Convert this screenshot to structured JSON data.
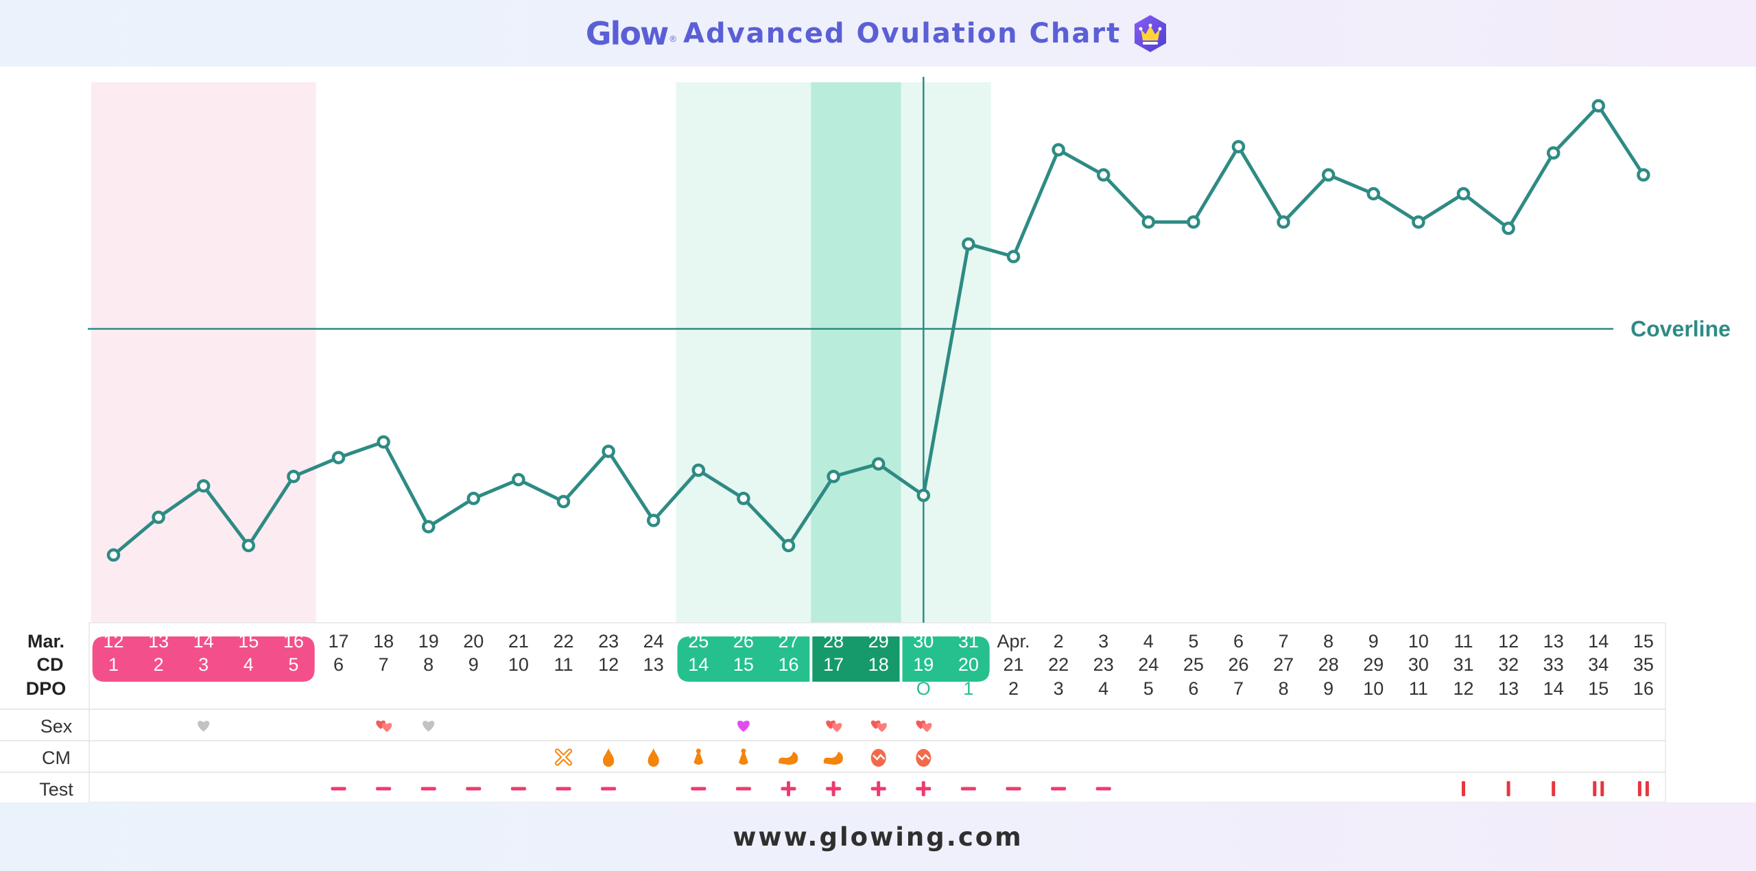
{
  "header": {
    "logo": "Glow",
    "logo_mark": "®",
    "title": "Advanced Ovulation Chart",
    "icon": "crown-icon"
  },
  "footer": {
    "url": "www.glowing.com"
  },
  "colors": {
    "line": "#2e8b84",
    "period_band": "#fdebf2",
    "fertile_band": "#e6f8f1",
    "peak_band": "#b9ecda",
    "period_chip": "#f3508b",
    "fertile_chip": "#26c08f",
    "peak_chip": "#169a6c",
    "test_mark": "#ee3a6e",
    "cm_mark": "#f5840b",
    "sex_gray": "#c2c2c2",
    "sex_purple": "#e34df0",
    "sex_red": "#f25b5b"
  },
  "chart_data": {
    "type": "line",
    "series_name": "",
    "ylim": [
      0,
      100
    ],
    "coverline": {
      "value": 47,
      "label": "Coverline"
    },
    "ovulation_day_index": 18,
    "x_labels": {
      "month_label": "Mar.",
      "cd_label": "CD",
      "dpo_label": "DPO",
      "dates": [
        "12",
        "13",
        "14",
        "15",
        "16",
        "17",
        "18",
        "19",
        "20",
        "21",
        "22",
        "23",
        "24",
        "25",
        "26",
        "27",
        "28",
        "29",
        "30",
        "31",
        "Apr.",
        "2",
        "3",
        "4",
        "5",
        "6",
        "7",
        "8",
        "9",
        "10",
        "11",
        "12",
        "13",
        "14",
        "15"
      ],
      "cd": [
        "1",
        "2",
        "3",
        "4",
        "5",
        "6",
        "7",
        "8",
        "9",
        "10",
        "11",
        "12",
        "13",
        "14",
        "15",
        "16",
        "17",
        "18",
        "19",
        "20",
        "21",
        "22",
        "23",
        "24",
        "25",
        "26",
        "27",
        "28",
        "29",
        "30",
        "31",
        "32",
        "33",
        "34",
        "35"
      ],
      "dpo": [
        "",
        "",
        "",
        "",
        "",
        "",
        "",
        "",
        "",
        "",
        "",
        "",
        "",
        "",
        "",
        "",
        "",
        "",
        "O",
        "1",
        "2",
        "3",
        "4",
        "5",
        "6",
        "7",
        "8",
        "9",
        "10",
        "11",
        "12",
        "13",
        "14",
        "15",
        "16"
      ]
    },
    "values": [
      11,
      17,
      22,
      12.5,
      23.5,
      26.5,
      29,
      15.5,
      20,
      23,
      19.5,
      27.5,
      16.5,
      24.5,
      20,
      12.5,
      23.5,
      25.5,
      20.5,
      60.5,
      58.5,
      75.5,
      71.5,
      64,
      64,
      76,
      64,
      71.5,
      68.5,
      64,
      68.5,
      63,
      75,
      82.5,
      71.5
    ],
    "bands": [
      {
        "kind": "period",
        "start": 0,
        "end": 4
      },
      {
        "kind": "fertile",
        "start": 13,
        "end": 19
      },
      {
        "kind": "peak",
        "start": 16,
        "end": 17
      }
    ],
    "rows": [
      {
        "label": "Sex",
        "marks": [
          {
            "i": 2,
            "type": "heart-gray"
          },
          {
            "i": 6,
            "type": "hearts-red"
          },
          {
            "i": 7,
            "type": "heart-gray"
          },
          {
            "i": 14,
            "type": "heart-purple"
          },
          {
            "i": 16,
            "type": "hearts-red"
          },
          {
            "i": 17,
            "type": "hearts-red"
          },
          {
            "i": 18,
            "type": "hearts-red"
          }
        ]
      },
      {
        "label": "CM",
        "marks": [
          {
            "i": 10,
            "type": "dry"
          },
          {
            "i": 11,
            "type": "drop"
          },
          {
            "i": 12,
            "type": "drop"
          },
          {
            "i": 13,
            "type": "sticky"
          },
          {
            "i": 14,
            "type": "sticky"
          },
          {
            "i": 15,
            "type": "creamy"
          },
          {
            "i": 16,
            "type": "creamy"
          },
          {
            "i": 17,
            "type": "eggwhite"
          },
          {
            "i": 18,
            "type": "eggwhite"
          }
        ]
      },
      {
        "label": "Test",
        "marks": [
          {
            "i": 5,
            "type": "minus"
          },
          {
            "i": 6,
            "type": "minus"
          },
          {
            "i": 7,
            "type": "minus"
          },
          {
            "i": 8,
            "type": "minus"
          },
          {
            "i": 9,
            "type": "minus"
          },
          {
            "i": 10,
            "type": "minus"
          },
          {
            "i": 11,
            "type": "minus"
          },
          {
            "i": 13,
            "type": "minus"
          },
          {
            "i": 14,
            "type": "minus"
          },
          {
            "i": 15,
            "type": "plus"
          },
          {
            "i": 16,
            "type": "plus"
          },
          {
            "i": 17,
            "type": "plus"
          },
          {
            "i": 18,
            "type": "plus"
          },
          {
            "i": 19,
            "type": "minus"
          },
          {
            "i": 20,
            "type": "minus"
          },
          {
            "i": 21,
            "type": "minus"
          },
          {
            "i": 22,
            "type": "minus"
          },
          {
            "i": 30,
            "type": "one-line"
          },
          {
            "i": 31,
            "type": "one-line"
          },
          {
            "i": 32,
            "type": "one-line"
          },
          {
            "i": 33,
            "type": "two-lines"
          },
          {
            "i": 34,
            "type": "two-lines"
          }
        ]
      }
    ]
  }
}
